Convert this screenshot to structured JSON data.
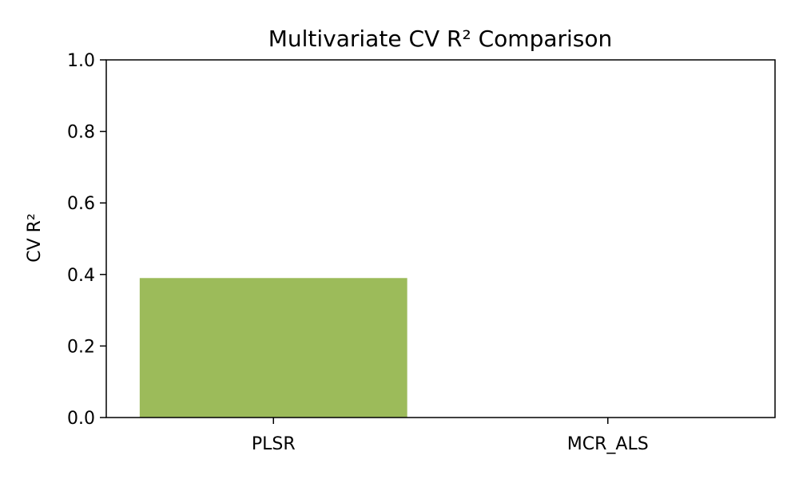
{
  "chart_data": {
    "type": "bar",
    "title": "Multivariate CV R² Comparison",
    "xlabel": "",
    "ylabel": "CV R²",
    "categories": [
      "PLSR",
      "MCR_ALS"
    ],
    "values": [
      0.39,
      0.0
    ],
    "ylim": [
      0,
      1.0
    ],
    "yticks": [
      "0.0",
      "0.2",
      "0.4",
      "0.6",
      "0.8",
      "1.0"
    ],
    "bar_color": "#9cbb5a",
    "grid": false,
    "legend": "none"
  }
}
